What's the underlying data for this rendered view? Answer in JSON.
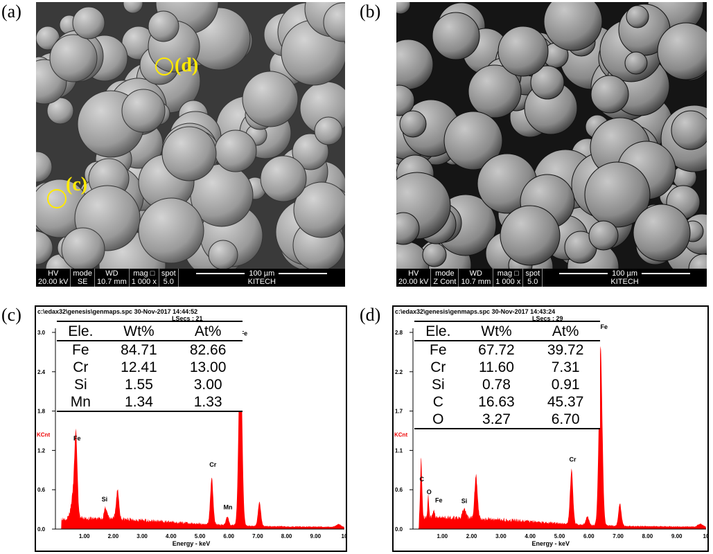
{
  "panels": {
    "a": {
      "label": "(a)",
      "markers": [
        "(d)",
        "(c)"
      ],
      "info": {
        "hv_label": "HV",
        "hv": "20.00 kV",
        "mode_label": "mode",
        "mode": "SE",
        "wd_label": "WD",
        "wd": "10.7 mm",
        "mag_label": "mag □",
        "mag": "1 000 x",
        "spot_label": "spot",
        "spot": "5.0",
        "scale": "100 µm",
        "org": "KITECH"
      }
    },
    "b": {
      "label": "(b)",
      "info": {
        "hv_label": "HV",
        "hv": "20.00 kV",
        "mode_label": "mode",
        "mode": "Z Cont",
        "wd_label": "WD",
        "wd": "10.7 mm",
        "mag_label": "mag □",
        "mag": "1 000 x",
        "spot_label": "spot",
        "spot": "5.0",
        "scale": "100 µm",
        "org": "KITECH"
      }
    },
    "c": {
      "label": "(c)"
    },
    "d": {
      "label": "(d)"
    }
  },
  "chart_data": [
    {
      "type": "area",
      "panel": "c",
      "header": "c:\\edax32\\genesis\\genmaps.spc  30-Nov-2017 14:44:52",
      "lsecs": "LSecs : 21",
      "xlabel": "Energy - keV",
      "ylabel": "KCnt",
      "xlim": [
        0,
        10
      ],
      "ylim": [
        0,
        3.0
      ],
      "xticks": [
        "1.00",
        "2.00",
        "3.00",
        "4.00",
        "5.00",
        "6.00",
        "7.00",
        "8.00",
        "9.00",
        "10"
      ],
      "yticks": [
        {
          "v": 0,
          "t": "0.0"
        },
        {
          "v": 0.6,
          "t": "0.6"
        },
        {
          "v": 1.2,
          "t": "1.2"
        },
        {
          "v": 1.8,
          "t": "1.8"
        },
        {
          "v": 2.4,
          "t": "2.4"
        },
        {
          "v": 3.0,
          "t": "3.0"
        }
      ],
      "color": "#ff0000",
      "peaks": [
        {
          "e": 0.71,
          "h": 1.15,
          "w": 0.05
        },
        {
          "e": 0.62,
          "h": 0.35,
          "w": 0.08
        },
        {
          "e": 1.74,
          "h": 0.17,
          "w": 0.05
        },
        {
          "e": 2.15,
          "h": 0.45,
          "w": 0.05
        },
        {
          "e": 5.41,
          "h": 0.72,
          "w": 0.05
        },
        {
          "e": 5.95,
          "h": 0.13,
          "w": 0.05
        },
        {
          "e": 6.4,
          "h": 2.85,
          "w": 0.06
        },
        {
          "e": 7.06,
          "h": 0.37,
          "w": 0.05
        },
        {
          "e": 9.8,
          "h": 0.04,
          "w": 0.08
        }
      ],
      "labels": [
        {
          "t": "Fe",
          "e": 0.75,
          "v": 1.35
        },
        {
          "t": "Si",
          "e": 1.7,
          "v": 0.42
        },
        {
          "t": "Cr",
          "e": 5.45,
          "v": 0.95
        },
        {
          "t": "Mn",
          "e": 5.97,
          "v": 0.3
        },
        {
          "t": "Fe",
          "e": 6.52,
          "v": 2.95
        }
      ],
      "table": {
        "headers": [
          "Ele.",
          "Wt%",
          "At%"
        ],
        "rows": [
          [
            "Fe",
            "84.71",
            "82.66"
          ],
          [
            "Cr",
            "12.41",
            "13.00"
          ],
          [
            "Si",
            "1.55",
            "3.00"
          ],
          [
            "Mn",
            "1.34",
            "1.33"
          ]
        ]
      }
    },
    {
      "type": "area",
      "panel": "d",
      "header": "c:\\edax32\\genesis\\genmaps.spc  30-Nov-2017 14:43:24",
      "lsecs": "LSecs : 29",
      "xlabel": "Energy - keV",
      "ylabel": "KCnt",
      "xlim": [
        0,
        10
      ],
      "ylim": [
        0,
        2.8
      ],
      "xticks": [
        "1.00",
        "2.00",
        "3.00",
        "4.00",
        "5.00",
        "6.00",
        "7.00",
        "8.00",
        "9.00",
        "10"
      ],
      "yticks": [
        {
          "v": 0,
          "t": "0.0"
        },
        {
          "v": 0.56,
          "t": "0.6"
        },
        {
          "v": 1.12,
          "t": "1.1"
        },
        {
          "v": 1.68,
          "t": "1.7"
        },
        {
          "v": 2.24,
          "t": "2.2"
        },
        {
          "v": 2.8,
          "t": "2.8"
        }
      ],
      "color": "#ff0000",
      "peaks": [
        {
          "e": 0.28,
          "h": 0.85,
          "w": 0.03
        },
        {
          "e": 0.52,
          "h": 0.32,
          "w": 0.025
        },
        {
          "e": 0.71,
          "h": 0.12,
          "w": 0.03
        },
        {
          "e": 1.74,
          "h": 0.12,
          "w": 0.06
        },
        {
          "e": 2.15,
          "h": 0.62,
          "w": 0.05
        },
        {
          "e": 5.41,
          "h": 0.78,
          "w": 0.05
        },
        {
          "e": 5.95,
          "h": 0.12,
          "w": 0.05
        },
        {
          "e": 6.4,
          "h": 2.55,
          "w": 0.06
        },
        {
          "e": 7.06,
          "h": 0.32,
          "w": 0.05
        },
        {
          "e": 9.8,
          "h": 0.04,
          "w": 0.08
        }
      ],
      "labels": [
        {
          "t": "C",
          "e": 0.3,
          "v": 0.68
        },
        {
          "t": "O",
          "e": 0.55,
          "v": 0.5
        },
        {
          "t": "Fe",
          "e": 0.88,
          "v": 0.38
        },
        {
          "t": "Si",
          "e": 1.75,
          "v": 0.37
        },
        {
          "t": "Cr",
          "e": 5.45,
          "v": 0.96
        },
        {
          "t": "Fe",
          "e": 6.52,
          "v": 2.85
        }
      ],
      "table": {
        "headers": [
          "Ele.",
          "Wt%",
          "At%"
        ],
        "rows": [
          [
            "Fe",
            "67.72",
            "39.72"
          ],
          [
            "Cr",
            "11.60",
            "7.31"
          ],
          [
            "Si",
            "0.78",
            "0.91"
          ],
          [
            "C",
            "16.63",
            "45.37"
          ],
          [
            "O",
            "3.27",
            "6.70"
          ]
        ]
      }
    }
  ]
}
